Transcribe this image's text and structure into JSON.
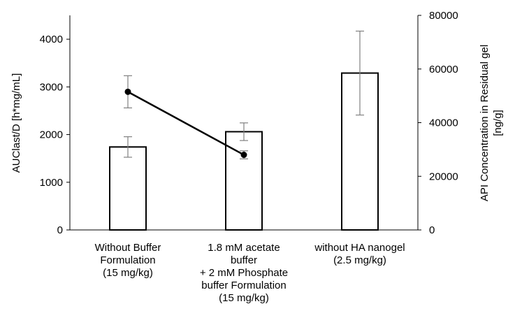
{
  "chart_data": {
    "type": "bar",
    "categories": [
      [
        "Without Buffer",
        "Formulation",
        "(15 mg/kg)"
      ],
      [
        "1.8 mM acetate",
        "buffer",
        "+ 2 mM Phosphate",
        "buffer Formulation",
        "(15 mg/kg)"
      ],
      [
        "without HA nanogel",
        "(2.5 mg/kg)"
      ]
    ],
    "bars": {
      "axis": "left",
      "values": [
        1740,
        2060,
        3290
      ],
      "errors": [
        215,
        185,
        880
      ],
      "fill": "#ffffff",
      "stroke": "#000000"
    },
    "line": {
      "axis": "right",
      "values": [
        51500,
        28000,
        null
      ],
      "errors": [
        6000,
        1500,
        null
      ],
      "color": "#000000"
    },
    "y_left": {
      "label": "AUClast/D [h*mg/mL]",
      "ylim": [
        0,
        4500
      ],
      "ticks": [
        0,
        1000,
        2000,
        3000,
        4000
      ]
    },
    "y_right": {
      "label_lines": [
        "API Concentration in Residual gel",
        "[ng/g]"
      ],
      "ylim": [
        0,
        80000
      ],
      "ticks": [
        0,
        20000,
        40000,
        60000,
        80000
      ]
    },
    "error_bar_color": "#808080",
    "grid": false,
    "legend": false
  }
}
